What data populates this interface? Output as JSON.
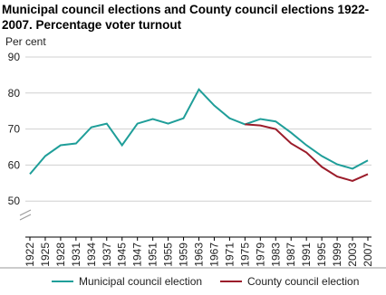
{
  "chart_data": {
    "type": "line",
    "title": "Municipal council elections and County council elections 1922-2007. Percentage voter turnout",
    "y_label": "Per cent",
    "categories": [
      "1922",
      "1925",
      "1928",
      "1931",
      "1934",
      "1937",
      "1945",
      "1947",
      "1951",
      "1955",
      "1959",
      "1963",
      "1967",
      "1971",
      "1975",
      "1979",
      "1983",
      "1987",
      "1991",
      "1995",
      "1999",
      "2003",
      "2007"
    ],
    "series": [
      {
        "name": "Municipal council election",
        "color": "#1f9e99",
        "values": [
          57.5,
          62.5,
          65.5,
          66,
          70.5,
          71.5,
          65.5,
          71.5,
          72.8,
          71.5,
          73,
          81,
          76.5,
          73,
          71.3,
          72.8,
          72.1,
          69,
          65.5,
          62.5,
          60.2,
          59,
          61.3
        ]
      },
      {
        "name": "County council election",
        "color": "#9b1c2a",
        "values": [
          null,
          null,
          null,
          null,
          null,
          null,
          null,
          null,
          null,
          null,
          null,
          null,
          null,
          null,
          71.3,
          71,
          70,
          66,
          63.5,
          59.5,
          56.8,
          55.6,
          57.5
        ]
      }
    ],
    "ylim": [
      40,
      90
    ],
    "yticks": [
      50,
      60,
      70,
      80,
      90
    ],
    "grid": true,
    "y_axis_break": true
  }
}
